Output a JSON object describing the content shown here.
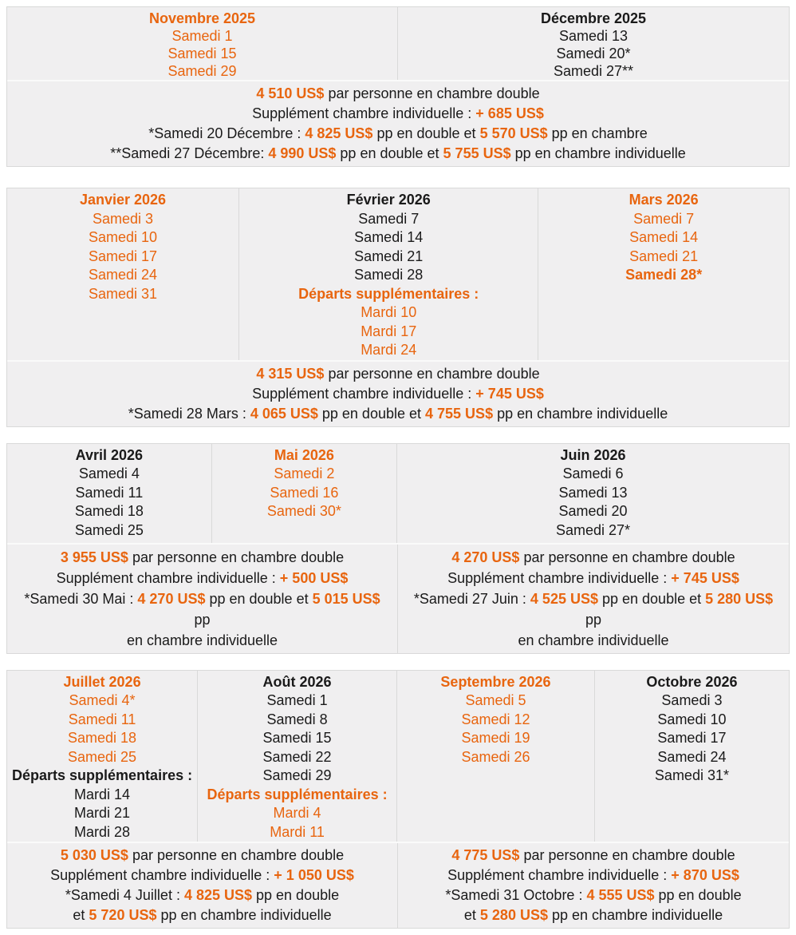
{
  "colors": {
    "accent": "#E8650F",
    "text": "#1A1A1A",
    "cell_background": "#F0EFF0",
    "border": "#D9D9D9"
  },
  "blocks": [
    {
      "columns": [
        {
          "title": "Novembre 2025",
          "title_accent": true,
          "items": [
            {
              "text": "Samedi 1",
              "accent": true,
              "bold": false
            },
            {
              "text": "Samedi 15",
              "accent": true,
              "bold": false
            },
            {
              "text": "Samedi 29",
              "accent": true,
              "bold": false
            }
          ]
        },
        {
          "title": "Décembre 2025",
          "title_accent": false,
          "items": [
            {
              "text": "Samedi 13",
              "accent": false,
              "bold": false
            },
            {
              "text": "Samedi 20*",
              "accent": false,
              "bold": false
            },
            {
              "text": "Samedi 27**",
              "accent": false,
              "bold": false
            }
          ]
        }
      ],
      "pricing": [
        {
          "lines": [
            {
              "segments": [
                {
                  "t": "4 510 US$",
                  "accent": true
                },
                {
                  "t": " par personne en chambre double",
                  "accent": false
                }
              ]
            },
            {
              "segments": [
                {
                  "t": "Supplément chambre individuelle : ",
                  "accent": false
                },
                {
                  "t": "+ 685 US$",
                  "accent": true
                }
              ]
            },
            {
              "segments": [
                {
                  "t": "*Samedi 20 Décembre : ",
                  "accent": false
                },
                {
                  "t": "4 825 US$",
                  "accent": true
                },
                {
                  "t": " pp en double et ",
                  "accent": false
                },
                {
                  "t": "5 570 US$",
                  "accent": true
                },
                {
                  "t": " pp en chambre",
                  "accent": false
                }
              ]
            },
            {
              "segments": [
                {
                  "t": "**Samedi 27 Décembre: ",
                  "accent": false
                },
                {
                  "t": "4 990 US$",
                  "accent": true
                },
                {
                  "t": " pp en double et ",
                  "accent": false
                },
                {
                  "t": "5 755 US$",
                  "accent": true
                },
                {
                  "t": " pp en chambre individuelle",
                  "accent": false
                }
              ]
            }
          ]
        }
      ]
    },
    {
      "columns": [
        {
          "title": "Janvier 2026",
          "title_accent": true,
          "items": [
            {
              "text": "Samedi 3",
              "accent": true,
              "bold": false
            },
            {
              "text": "Samedi 10",
              "accent": true,
              "bold": false
            },
            {
              "text": "Samedi 17",
              "accent": true,
              "bold": false
            },
            {
              "text": "Samedi 24",
              "accent": true,
              "bold": false
            },
            {
              "text": "Samedi 31",
              "accent": true,
              "bold": false
            }
          ]
        },
        {
          "title": "Février 2026",
          "title_accent": false,
          "items": [
            {
              "text": "Samedi 7",
              "accent": false,
              "bold": false
            },
            {
              "text": "Samedi 14",
              "accent": false,
              "bold": false
            },
            {
              "text": "Samedi 21",
              "accent": false,
              "bold": false
            },
            {
              "text": "Samedi 28",
              "accent": false,
              "bold": false
            },
            {
              "text": "Départs supplémentaires :",
              "accent": true,
              "bold": true
            },
            {
              "text": "Mardi 10",
              "accent": true,
              "bold": false
            },
            {
              "text": "Mardi 17",
              "accent": true,
              "bold": false
            },
            {
              "text": "Mardi 24",
              "accent": true,
              "bold": false
            }
          ]
        },
        {
          "title": "Mars 2026",
          "title_accent": true,
          "items": [
            {
              "text": "Samedi 7",
              "accent": true,
              "bold": false
            },
            {
              "text": "Samedi 14",
              "accent": true,
              "bold": false
            },
            {
              "text": "Samedi 21",
              "accent": true,
              "bold": false
            },
            {
              "text": "Samedi 28*",
              "accent": true,
              "bold": true
            }
          ]
        }
      ],
      "pricing": [
        {
          "lines": [
            {
              "segments": [
                {
                  "t": "4 315 US$",
                  "accent": true
                },
                {
                  "t": " par personne en chambre double",
                  "accent": false
                }
              ]
            },
            {
              "segments": [
                {
                  "t": "Supplément chambre individuelle : ",
                  "accent": false
                },
                {
                  "t": "+ 745 US$",
                  "accent": true
                }
              ]
            },
            {
              "segments": [
                {
                  "t": "*Samedi 28 Mars : ",
                  "accent": false
                },
                {
                  "t": "4 065 US$",
                  "accent": true
                },
                {
                  "t": " pp en double et ",
                  "accent": false
                },
                {
                  "t": "4 755 US$",
                  "accent": true
                },
                {
                  "t": " pp en chambre individuelle",
                  "accent": false
                }
              ]
            }
          ]
        }
      ]
    },
    {
      "columns": [
        {
          "title": "Avril 2026",
          "title_accent": false,
          "items": [
            {
              "text": "Samedi 4",
              "accent": false,
              "bold": false
            },
            {
              "text": "Samedi 11",
              "accent": false,
              "bold": false
            },
            {
              "text": "Samedi 18",
              "accent": false,
              "bold": false
            },
            {
              "text": "Samedi 25",
              "accent": false,
              "bold": false
            }
          ]
        },
        {
          "title": "Mai 2026",
          "title_accent": true,
          "items": [
            {
              "text": "Samedi 2",
              "accent": true,
              "bold": false
            },
            {
              "text": "Samedi 16",
              "accent": true,
              "bold": false
            },
            {
              "text": "Samedi 30*",
              "accent": true,
              "bold": false
            }
          ]
        },
        {
          "title": "Juin 2026",
          "title_accent": false,
          "items": [
            {
              "text": "Samedi 6",
              "accent": false,
              "bold": false
            },
            {
              "text": "Samedi 13",
              "accent": false,
              "bold": false
            },
            {
              "text": "Samedi 20",
              "accent": false,
              "bold": false
            },
            {
              "text": "Samedi 27*",
              "accent": false,
              "bold": false
            }
          ]
        }
      ],
      "pricing": [
        {
          "lines": [
            {
              "segments": [
                {
                  "t": "3 955 US$",
                  "accent": true
                },
                {
                  "t": " par personne en chambre double",
                  "accent": false
                }
              ]
            },
            {
              "segments": [
                {
                  "t": "Supplément chambre individuelle : ",
                  "accent": false
                },
                {
                  "t": "+ 500 US$",
                  "accent": true
                }
              ]
            },
            {
              "segments": [
                {
                  "t": "*Samedi 30 Mai : ",
                  "accent": false
                },
                {
                  "t": "4 270 US$",
                  "accent": true
                },
                {
                  "t": " pp en double et ",
                  "accent": false
                },
                {
                  "t": "5 015 US$",
                  "accent": true
                },
                {
                  "t": " pp",
                  "accent": false
                }
              ]
            },
            {
              "segments": [
                {
                  "t": "en chambre individuelle",
                  "accent": false
                }
              ]
            }
          ]
        },
        {
          "lines": [
            {
              "segments": [
                {
                  "t": "4 270 US$",
                  "accent": true
                },
                {
                  "t": " par personne en chambre double",
                  "accent": false
                }
              ]
            },
            {
              "segments": [
                {
                  "t": "Supplément chambre individuelle : ",
                  "accent": false
                },
                {
                  "t": "+ 745 US$",
                  "accent": true
                }
              ]
            },
            {
              "segments": [
                {
                  "t": "*Samedi 27 Juin : ",
                  "accent": false
                },
                {
                  "t": "4 525 US$",
                  "accent": true
                },
                {
                  "t": " pp en double et ",
                  "accent": false
                },
                {
                  "t": "5 280 US$",
                  "accent": true
                },
                {
                  "t": " pp",
                  "accent": false
                }
              ]
            },
            {
              "segments": [
                {
                  "t": "en chambre individuelle",
                  "accent": false
                }
              ]
            }
          ]
        }
      ]
    },
    {
      "columns": [
        {
          "title": "Juillet 2026",
          "title_accent": true,
          "items": [
            {
              "text": "Samedi 4*",
              "accent": true,
              "bold": false
            },
            {
              "text": "Samedi 11",
              "accent": true,
              "bold": false
            },
            {
              "text": "Samedi 18",
              "accent": true,
              "bold": false
            },
            {
              "text": "Samedi 25",
              "accent": true,
              "bold": false
            },
            {
              "text": "Départs supplémentaires :",
              "accent": false,
              "bold": true
            },
            {
              "text": "Mardi 14",
              "accent": false,
              "bold": false
            },
            {
              "text": "Mardi 21",
              "accent": false,
              "bold": false
            },
            {
              "text": "Mardi 28",
              "accent": false,
              "bold": false
            }
          ]
        },
        {
          "title": "Août 2026",
          "title_accent": false,
          "items": [
            {
              "text": "Samedi 1",
              "accent": false,
              "bold": false
            },
            {
              "text": "Samedi 8",
              "accent": false,
              "bold": false
            },
            {
              "text": "Samedi 15",
              "accent": false,
              "bold": false
            },
            {
              "text": "Samedi 22",
              "accent": false,
              "bold": false
            },
            {
              "text": "Samedi 29",
              "accent": false,
              "bold": false
            },
            {
              "text": "Départs supplémentaires :",
              "accent": true,
              "bold": true
            },
            {
              "text": "Mardi 4",
              "accent": true,
              "bold": false
            },
            {
              "text": "Mardi 11",
              "accent": true,
              "bold": false
            }
          ]
        },
        {
          "title": "Septembre 2026",
          "title_accent": true,
          "items": [
            {
              "text": "Samedi 5",
              "accent": true,
              "bold": false
            },
            {
              "text": "Samedi 12",
              "accent": true,
              "bold": false
            },
            {
              "text": "Samedi 19",
              "accent": true,
              "bold": false
            },
            {
              "text": "Samedi 26",
              "accent": true,
              "bold": false
            }
          ]
        },
        {
          "title": "Octobre 2026",
          "title_accent": false,
          "items": [
            {
              "text": "Samedi 3",
              "accent": false,
              "bold": false
            },
            {
              "text": "Samedi 10",
              "accent": false,
              "bold": false
            },
            {
              "text": "Samedi 17",
              "accent": false,
              "bold": false
            },
            {
              "text": "Samedi 24",
              "accent": false,
              "bold": false
            },
            {
              "text": "Samedi 31*",
              "accent": false,
              "bold": false
            }
          ]
        }
      ],
      "pricing": [
        {
          "lines": [
            {
              "segments": [
                {
                  "t": "5 030 US$",
                  "accent": true
                },
                {
                  "t": " par personne en chambre double",
                  "accent": false
                }
              ]
            },
            {
              "segments": [
                {
                  "t": "Supplément chambre individuelle : ",
                  "accent": false
                },
                {
                  "t": "+ 1 050 US$",
                  "accent": true
                }
              ]
            },
            {
              "segments": [
                {
                  "t": "*Samedi 4 Juillet : ",
                  "accent": false
                },
                {
                  "t": "4 825 US$",
                  "accent": true
                },
                {
                  "t": " pp en double",
                  "accent": false
                }
              ]
            },
            {
              "segments": [
                {
                  "t": "et ",
                  "accent": false
                },
                {
                  "t": "5 720 US$",
                  "accent": true
                },
                {
                  "t": " pp en chambre individuelle",
                  "accent": false
                }
              ]
            }
          ]
        },
        {
          "lines": [
            {
              "segments": [
                {
                  "t": "4 775 US$",
                  "accent": true
                },
                {
                  "t": " par personne en chambre double",
                  "accent": false
                }
              ]
            },
            {
              "segments": [
                {
                  "t": "Supplément chambre individuelle : ",
                  "accent": false
                },
                {
                  "t": "+ 870 US$",
                  "accent": true
                }
              ]
            },
            {
              "segments": [
                {
                  "t": "*Samedi 31 Octobre : ",
                  "accent": false
                },
                {
                  "t": "4 555 US$",
                  "accent": true
                },
                {
                  "t": " pp en double",
                  "accent": false
                }
              ]
            },
            {
              "segments": [
                {
                  "t": "et ",
                  "accent": false
                },
                {
                  "t": "5 280 US$",
                  "accent": true
                },
                {
                  "t": " pp en chambre individuelle",
                  "accent": false
                }
              ]
            }
          ]
        }
      ]
    }
  ]
}
